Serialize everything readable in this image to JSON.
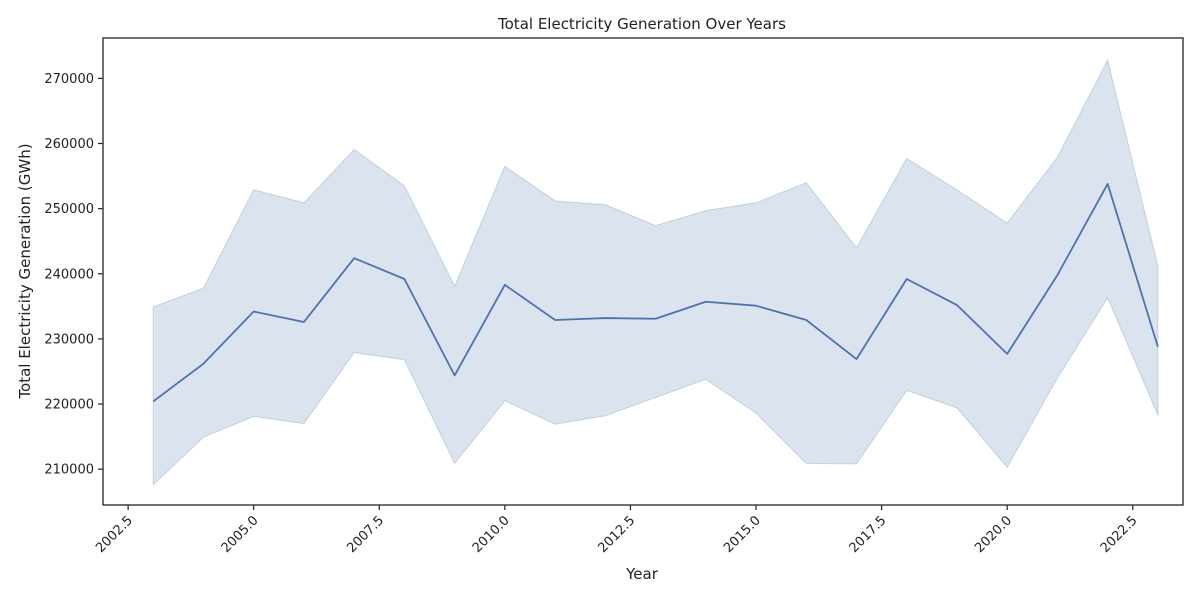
{
  "chart_data": {
    "type": "line",
    "title": "Total Electricity Generation Over Years",
    "xlabel": "Year",
    "ylabel": "Total Electricity Generation (GWh)",
    "xlim": [
      2002.0,
      2023.5
    ],
    "ylim": [
      204500,
      276200
    ],
    "x_ticks": [
      2002.5,
      2005.0,
      2007.5,
      2010.0,
      2012.5,
      2015.0,
      2017.5,
      2020.0,
      2022.5
    ],
    "x_tick_labels": [
      "2002.5",
      "2005.0",
      "2007.5",
      "2010.0",
      "2012.5",
      "2015.0",
      "2017.5",
      "2020.0",
      "2022.5"
    ],
    "y_ticks": [
      210000,
      220000,
      230000,
      240000,
      250000,
      260000,
      270000
    ],
    "y_tick_labels": [
      "210000",
      "220000",
      "230000",
      "240000",
      "250000",
      "260000",
      "270000"
    ],
    "grid": false,
    "line_color": "#4c72b0",
    "band_color": "#4c72b0",
    "x": [
      2003,
      2004,
      2005,
      2006,
      2007,
      2008,
      2009,
      2010,
      2011,
      2012,
      2013,
      2014,
      2015,
      2016,
      2017,
      2018,
      2019,
      2020,
      2021,
      2022,
      2023
    ],
    "series": [
      {
        "values": [
          220400,
          226200,
          234200,
          232600,
          242400,
          239200,
          224400,
          238300,
          232900,
          233200,
          233100,
          235700,
          235100,
          232900,
          226900,
          239200,
          235200,
          227700,
          239800,
          253800,
          228800
        ],
        "upper": [
          234900,
          237800,
          252900,
          250900,
          259100,
          253500,
          238100,
          256500,
          251200,
          250600,
          247400,
          249700,
          250900,
          254000,
          244000,
          257700,
          252900,
          247800,
          257900,
          272800,
          241200
        ],
        "lower": [
          207600,
          214900,
          218100,
          217000,
          227900,
          226800,
          210900,
          220500,
          216900,
          218200,
          221000,
          223800,
          218600,
          210900,
          210800,
          222100,
          219400,
          210300,
          224000,
          236300,
          218300
        ]
      }
    ]
  }
}
